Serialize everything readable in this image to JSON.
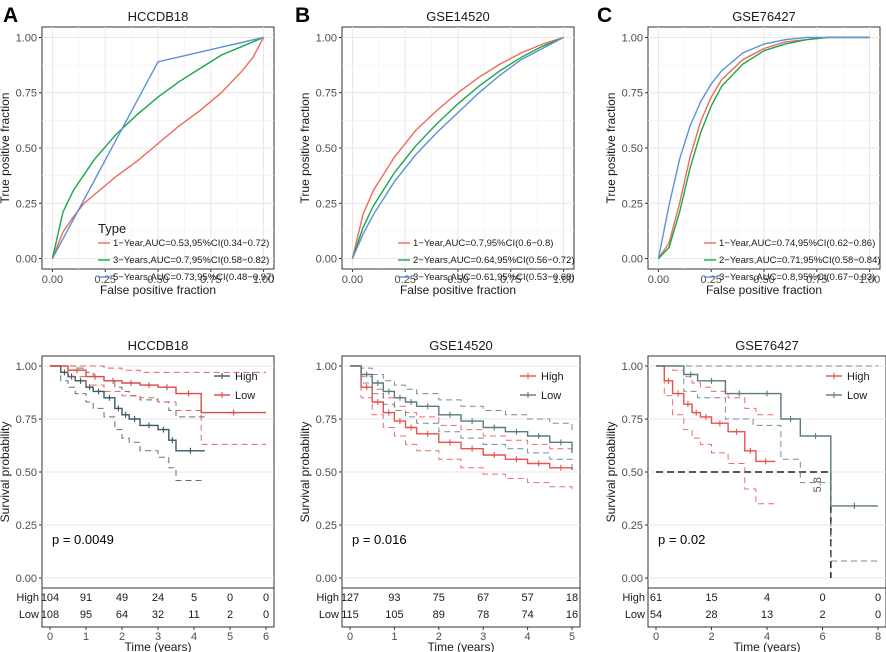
{
  "colors": {
    "red": "#ee6a5a",
    "green": "#1aa64a",
    "blue": "#5b92d6",
    "km_high_hccdb": "#3c5a63",
    "km_low_hccdb": "#d94b45",
    "km_high": "#e8524f",
    "km_low": "#5c7a80",
    "grid": "#e7e7e7",
    "axis_text": "#4d4d4d",
    "text": "#1a1a1a"
  },
  "panel_letters": [
    "A",
    "B",
    "C"
  ],
  "chart_data": [
    {
      "id": "roc_hccdb18",
      "type": "line",
      "title": "HCCDB18",
      "xlabel": "False positive fraction",
      "ylabel": "True positive fraction",
      "xlim": [
        0,
        1
      ],
      "ylim": [
        0,
        1
      ],
      "xticks": [
        "0.00",
        "0.25",
        "0.50",
        "0.75",
        "1.00"
      ],
      "yticks": [
        "0.00",
        "0.25",
        "0.50",
        "0.75",
        "1.00"
      ],
      "legend_title": "Type",
      "legend_position": "bottom-right",
      "series": [
        {
          "name": "1−Year,AUC=0.53,95%CI(0.34−0.72)",
          "color": "red",
          "x": [
            0,
            0.05,
            0.1,
            0.15,
            0.2,
            0.3,
            0.4,
            0.5,
            0.6,
            0.7,
            0.8,
            0.9,
            0.95,
            1.0
          ],
          "y": [
            0,
            0.12,
            0.19,
            0.25,
            0.29,
            0.37,
            0.44,
            0.52,
            0.6,
            0.67,
            0.75,
            0.85,
            0.91,
            1.0
          ]
        },
        {
          "name": "3−Years,AUC=0.7,95%CI(0.58−0.82)",
          "color": "green",
          "x": [
            0,
            0.05,
            0.1,
            0.2,
            0.3,
            0.4,
            0.5,
            0.6,
            0.7,
            0.8,
            0.9,
            1.0
          ],
          "y": [
            0,
            0.21,
            0.31,
            0.45,
            0.56,
            0.65,
            0.73,
            0.8,
            0.86,
            0.92,
            0.96,
            1.0
          ]
        },
        {
          "name": "5−Years,AUC=0.73,95%CI(0.48−0.97)",
          "color": "blue",
          "x": [
            0,
            0.5,
            1.0
          ],
          "y": [
            0,
            0.89,
            1.0
          ]
        }
      ]
    },
    {
      "id": "roc_gse14520",
      "type": "line",
      "title": "GSE14520",
      "xlabel": "False positive fraction",
      "ylabel": "True positive fraction",
      "xlim": [
        0,
        1
      ],
      "ylim": [
        0,
        1
      ],
      "xticks": [
        "0.00",
        "0.25",
        "0.50",
        "0.75",
        "1.00"
      ],
      "yticks": [
        "0.00",
        "0.25",
        "0.50",
        "0.75",
        "1.00"
      ],
      "legend_title": "",
      "legend_position": "bottom-right",
      "series": [
        {
          "name": "1−Year,AUC=0.7,95%CI(0.6−0.8)",
          "color": "red",
          "x": [
            0,
            0.05,
            0.1,
            0.2,
            0.3,
            0.4,
            0.5,
            0.6,
            0.7,
            0.8,
            0.9,
            1.0
          ],
          "y": [
            0,
            0.2,
            0.31,
            0.46,
            0.58,
            0.67,
            0.75,
            0.82,
            0.88,
            0.93,
            0.97,
            1.0
          ]
        },
        {
          "name": "2−Years,AUC=0.64,95%CI(0.56−0.72)",
          "color": "green",
          "x": [
            0,
            0.05,
            0.1,
            0.2,
            0.3,
            0.4,
            0.5,
            0.6,
            0.7,
            0.8,
            0.9,
            1.0
          ],
          "y": [
            0,
            0.14,
            0.24,
            0.39,
            0.51,
            0.61,
            0.7,
            0.78,
            0.85,
            0.91,
            0.96,
            1.0
          ]
        },
        {
          "name": "3−Years,AUC=0.61,95%CI(0.53−0.68)",
          "color": "blue",
          "x": [
            0,
            0.05,
            0.1,
            0.2,
            0.3,
            0.4,
            0.5,
            0.6,
            0.7,
            0.8,
            0.9,
            1.0
          ],
          "y": [
            0,
            0.11,
            0.2,
            0.35,
            0.47,
            0.57,
            0.66,
            0.75,
            0.83,
            0.9,
            0.95,
            1.0
          ]
        }
      ]
    },
    {
      "id": "roc_gse76427",
      "type": "line",
      "title": "GSE76427",
      "xlabel": "False positive fraction",
      "ylabel": "True positive fraction",
      "xlim": [
        0,
        1
      ],
      "ylim": [
        0,
        1
      ],
      "xticks": [
        "0.00",
        "0.25",
        "0.50",
        "0.75",
        "1.00"
      ],
      "yticks": [
        "0.00",
        "0.25",
        "0.50",
        "0.75",
        "1.00"
      ],
      "legend_title": "",
      "legend_position": "bottom-right",
      "series": [
        {
          "name": "1−Year,AUC=0.74,95%CI(0.62−0.86)",
          "color": "red",
          "x": [
            0,
            0.05,
            0.1,
            0.15,
            0.2,
            0.25,
            0.3,
            0.4,
            0.5,
            0.6,
            0.7,
            0.8,
            0.9,
            1.0
          ],
          "y": [
            0,
            0.07,
            0.25,
            0.46,
            0.62,
            0.73,
            0.81,
            0.9,
            0.95,
            0.98,
            0.99,
            1.0,
            1.0,
            1.0
          ]
        },
        {
          "name": "2−Years,AUC=0.71,95%CI(0.58−0.84)",
          "color": "green",
          "x": [
            0,
            0.05,
            0.1,
            0.15,
            0.2,
            0.25,
            0.3,
            0.4,
            0.5,
            0.6,
            0.7,
            0.8,
            0.9,
            1.0
          ],
          "y": [
            0,
            0.05,
            0.21,
            0.41,
            0.57,
            0.69,
            0.78,
            0.88,
            0.94,
            0.97,
            0.99,
            1.0,
            1.0,
            1.0
          ]
        },
        {
          "name": "3−Years,AUC=0.8,95%CI(0.67−0.93)",
          "color": "blue",
          "x": [
            0,
            0.05,
            0.1,
            0.15,
            0.2,
            0.25,
            0.3,
            0.4,
            0.5,
            0.6,
            0.7,
            0.8,
            0.9,
            1.0
          ],
          "y": [
            0,
            0.24,
            0.45,
            0.6,
            0.71,
            0.79,
            0.85,
            0.93,
            0.97,
            0.99,
            1.0,
            1.0,
            1.0,
            1.0
          ]
        }
      ]
    },
    {
      "id": "km_hccdb18",
      "type": "line",
      "title": "HCCDB18",
      "xlabel": "Time (years)",
      "ylabel": "Survival probability",
      "xlim": [
        0,
        6
      ],
      "ylim": [
        0,
        1
      ],
      "xticks": [
        "0",
        "1",
        "2",
        "3",
        "4",
        "5",
        "6"
      ],
      "yticks": [
        "0.00",
        "0.25",
        "0.50",
        "0.75",
        "1.00"
      ],
      "p_value": "p = 0.0049",
      "legend_position": "top-right",
      "series": [
        {
          "name": "High",
          "color": "km_high_hccdb",
          "x": [
            0,
            0.3,
            0.5,
            0.7,
            1.0,
            1.2,
            1.5,
            1.8,
            2.0,
            2.2,
            2.5,
            3.0,
            3.3,
            3.5,
            4.3
          ],
          "y": [
            1.0,
            0.97,
            0.95,
            0.93,
            0.9,
            0.88,
            0.85,
            0.8,
            0.77,
            0.75,
            0.72,
            0.7,
            0.65,
            0.6,
            0.6
          ],
          "upper": [
            1.0,
            1.0,
            1.0,
            0.99,
            0.97,
            0.95,
            0.93,
            0.9,
            0.88,
            0.86,
            0.84,
            0.83,
            0.79,
            0.76,
            0.76
          ],
          "lower": [
            1.0,
            0.93,
            0.9,
            0.87,
            0.83,
            0.8,
            0.76,
            0.7,
            0.66,
            0.64,
            0.6,
            0.57,
            0.52,
            0.46,
            0.46
          ]
        },
        {
          "name": "Low",
          "color": "km_low_hccdb",
          "x": [
            0,
            0.5,
            1.0,
            1.5,
            2.0,
            2.5,
            3.0,
            3.5,
            4.2,
            6.0
          ],
          "y": [
            1.0,
            0.98,
            0.95,
            0.93,
            0.92,
            0.91,
            0.9,
            0.87,
            0.78,
            0.78
          ],
          "upper": [
            1.0,
            1.0,
            1.0,
            0.99,
            0.98,
            0.97,
            0.97,
            0.97,
            0.97,
            0.97
          ],
          "lower": [
            1.0,
            0.95,
            0.91,
            0.88,
            0.86,
            0.85,
            0.83,
            0.79,
            0.63,
            0.63
          ]
        }
      ],
      "risk_table": {
        "rows": [
          "High",
          "Low"
        ],
        "counts": [
          [
            "104",
            "91",
            "49",
            "24",
            "5",
            "0",
            "0"
          ],
          [
            "108",
            "95",
            "64",
            "32",
            "11",
            "2",
            "0"
          ]
        ],
        "xlabel": "Time (years)"
      }
    },
    {
      "id": "km_gse14520",
      "type": "line",
      "title": "GSE14520",
      "xlabel": "Time (years)",
      "ylabel": "Survival probability",
      "xlim": [
        0,
        5
      ],
      "ylim": [
        0,
        1
      ],
      "xticks": [
        "0",
        "1",
        "2",
        "3",
        "4",
        "5"
      ],
      "yticks": [
        "0.00",
        "0.25",
        "0.50",
        "0.75",
        "1.00"
      ],
      "p_value": "p = 0.016",
      "legend_position": "top-right",
      "series": [
        {
          "name": "High",
          "color": "km_high",
          "x": [
            0,
            0.25,
            0.5,
            0.75,
            1.0,
            1.25,
            1.5,
            2.0,
            2.5,
            3.0,
            3.5,
            4.0,
            4.5,
            5.0
          ],
          "y": [
            1.0,
            0.9,
            0.83,
            0.78,
            0.74,
            0.71,
            0.68,
            0.64,
            0.61,
            0.58,
            0.56,
            0.54,
            0.52,
            0.51
          ],
          "upper": [
            1.0,
            0.95,
            0.89,
            0.85,
            0.81,
            0.78,
            0.76,
            0.72,
            0.7,
            0.67,
            0.65,
            0.63,
            0.61,
            0.6
          ],
          "lower": [
            1.0,
            0.85,
            0.77,
            0.71,
            0.67,
            0.63,
            0.6,
            0.56,
            0.52,
            0.49,
            0.47,
            0.45,
            0.43,
            0.42
          ]
        },
        {
          "name": "Low",
          "color": "km_low",
          "x": [
            0,
            0.25,
            0.5,
            0.75,
            1.0,
            1.25,
            1.5,
            2.0,
            2.5,
            3.0,
            3.5,
            4.0,
            4.5,
            5.0
          ],
          "y": [
            1.0,
            0.96,
            0.92,
            0.88,
            0.85,
            0.83,
            0.81,
            0.77,
            0.74,
            0.71,
            0.69,
            0.67,
            0.64,
            0.59
          ],
          "upper": [
            1.0,
            0.99,
            0.96,
            0.93,
            0.91,
            0.89,
            0.87,
            0.84,
            0.81,
            0.79,
            0.77,
            0.75,
            0.73,
            0.69
          ],
          "lower": [
            1.0,
            0.92,
            0.87,
            0.82,
            0.79,
            0.76,
            0.73,
            0.69,
            0.66,
            0.63,
            0.61,
            0.59,
            0.56,
            0.51
          ]
        }
      ],
      "risk_table": {
        "rows": [
          "High",
          "Low"
        ],
        "counts": [
          [
            "127",
            "93",
            "75",
            "67",
            "57",
            "18"
          ],
          [
            "115",
            "105",
            "89",
            "78",
            "74",
            "16"
          ]
        ],
        "xlabel": "Time (years)"
      }
    },
    {
      "id": "km_gse76427",
      "type": "line",
      "title": "GSE76427",
      "xlabel": "Time (years)",
      "ylabel": "Survival probability",
      "xlim": [
        0,
        8
      ],
      "ylim": [
        0,
        1
      ],
      "xticks": [
        "0",
        "2",
        "4",
        "6",
        "8"
      ],
      "yticks": [
        "0.00",
        "0.25",
        "0.50",
        "0.75",
        "1.00"
      ],
      "p_value": "p = 0.02",
      "legend_position": "top-right",
      "median_label": "5.8",
      "series": [
        {
          "name": "High",
          "color": "km_high",
          "x": [
            0,
            0.3,
            0.6,
            1.0,
            1.3,
            1.6,
            2.0,
            2.6,
            3.2,
            3.6,
            4.3
          ],
          "y": [
            1.0,
            0.93,
            0.87,
            0.82,
            0.78,
            0.76,
            0.73,
            0.69,
            0.6,
            0.55,
            0.55
          ],
          "upper": [
            1.0,
            1.0,
            0.98,
            0.95,
            0.92,
            0.9,
            0.88,
            0.85,
            0.8,
            0.77,
            0.77
          ],
          "lower": [
            1.0,
            0.86,
            0.77,
            0.7,
            0.66,
            0.63,
            0.59,
            0.54,
            0.42,
            0.35,
            0.35
          ]
        },
        {
          "name": "Low",
          "color": "km_low",
          "x": [
            0,
            1.0,
            1.5,
            2.5,
            3.5,
            4.5,
            5.2,
            6.3,
            8.0
          ],
          "y": [
            1.0,
            0.96,
            0.93,
            0.87,
            0.87,
            0.75,
            0.67,
            0.34,
            0.34
          ],
          "upper": [
            1.0,
            1.0,
            1.0,
            1.0,
            1.0,
            1.0,
            1.0,
            1.0,
            1.0
          ],
          "lower": [
            1.0,
            0.88,
            0.85,
            0.75,
            0.72,
            0.56,
            0.45,
            0.08,
            0.08
          ]
        }
      ],
      "risk_table": {
        "rows": [
          "High",
          "Low"
        ],
        "counts": [
          [
            "61",
            "15",
            "4",
            "0",
            "0"
          ],
          [
            "54",
            "28",
            "13",
            "2",
            "0"
          ]
        ],
        "xlabel": "Time (years)"
      }
    }
  ]
}
